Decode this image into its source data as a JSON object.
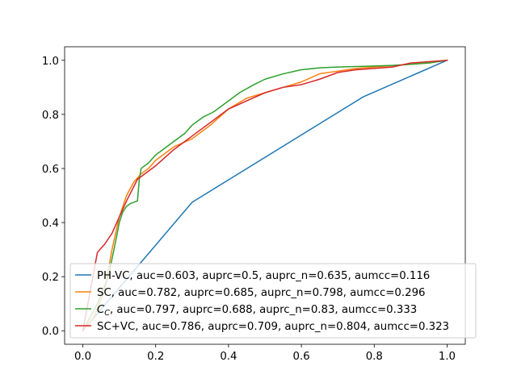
{
  "chart_data": {
    "type": "line",
    "title": "",
    "xlabel": "",
    "ylabel": "",
    "xlim": [
      -0.05,
      1.05
    ],
    "ylim": [
      -0.05,
      1.05
    ],
    "grid": false,
    "legend_position": "lower-right",
    "x_ticks": [
      "0.0",
      "0.2",
      "0.4",
      "0.6",
      "0.8",
      "1.0"
    ],
    "y_ticks": [
      "0.0",
      "0.2",
      "0.4",
      "0.6",
      "0.8",
      "1.0"
    ],
    "series": [
      {
        "name": "PH-VC, auc=0.603, auprc=0.5, auprc_n=0.635, aumcc=0.116",
        "color": "#1f77b4",
        "x": [
          0.0,
          0.3,
          0.77,
          1.0
        ],
        "y": [
          0.0,
          0.475,
          0.865,
          1.0
        ]
      },
      {
        "name": "SC, auc=0.782, auprc=0.685, auprc_n=0.798, aumcc=0.296",
        "color": "#ff7f0e",
        "x": [
          0.0,
          0.03,
          0.06,
          0.08,
          0.1,
          0.12,
          0.14,
          0.16,
          0.18,
          0.2,
          0.25,
          0.3,
          0.35,
          0.4,
          0.45,
          0.5,
          0.55,
          0.6,
          0.65,
          0.7,
          0.75,
          0.8,
          0.85,
          0.9,
          0.95,
          1.0
        ],
        "y": [
          0.0,
          0.05,
          0.15,
          0.3,
          0.42,
          0.5,
          0.55,
          0.58,
          0.6,
          0.63,
          0.68,
          0.71,
          0.76,
          0.82,
          0.86,
          0.88,
          0.9,
          0.92,
          0.95,
          0.96,
          0.97,
          0.975,
          0.98,
          0.985,
          0.99,
          1.0
        ]
      },
      {
        "name": "C_C, auc=0.797, auprc=0.688, auprc_n=0.83, aumcc=0.333",
        "label_main": "C",
        "label_sub": "C",
        "label_rest": ", auc=0.797, auprc=0.688, auprc_n=0.83, aumcc=0.333",
        "color": "#2ca02c",
        "x": [
          0.0,
          0.04,
          0.07,
          0.09,
          0.1,
          0.11,
          0.12,
          0.13,
          0.15,
          0.155,
          0.16,
          0.18,
          0.2,
          0.22,
          0.25,
          0.28,
          0.3,
          0.33,
          0.36,
          0.4,
          0.43,
          0.47,
          0.5,
          0.55,
          0.6,
          0.65,
          0.7,
          0.75,
          0.8,
          0.85,
          0.9,
          0.95,
          1.0
        ],
        "y": [
          0.0,
          0.1,
          0.2,
          0.33,
          0.4,
          0.44,
          0.46,
          0.47,
          0.48,
          0.56,
          0.6,
          0.62,
          0.65,
          0.67,
          0.7,
          0.73,
          0.76,
          0.79,
          0.81,
          0.85,
          0.88,
          0.91,
          0.93,
          0.95,
          0.965,
          0.972,
          0.975,
          0.977,
          0.979,
          0.981,
          0.985,
          0.99,
          1.0
        ]
      },
      {
        "name": "SC+VC, auc=0.786, auprc=0.709, auprc_n=0.804, aumcc=0.323",
        "color": "#d62728",
        "x": [
          0.0,
          0.04,
          0.06,
          0.08,
          0.1,
          0.12,
          0.15,
          0.2,
          0.25,
          0.3,
          0.35,
          0.4,
          0.45,
          0.5,
          0.55,
          0.6,
          0.65,
          0.7,
          0.75,
          0.8,
          0.85,
          0.9,
          0.95,
          1.0
        ],
        "y": [
          0.0,
          0.29,
          0.32,
          0.36,
          0.42,
          0.48,
          0.56,
          0.61,
          0.67,
          0.72,
          0.77,
          0.82,
          0.85,
          0.88,
          0.9,
          0.91,
          0.93,
          0.955,
          0.965,
          0.97,
          0.975,
          0.99,
          0.995,
          1.0
        ]
      }
    ]
  }
}
